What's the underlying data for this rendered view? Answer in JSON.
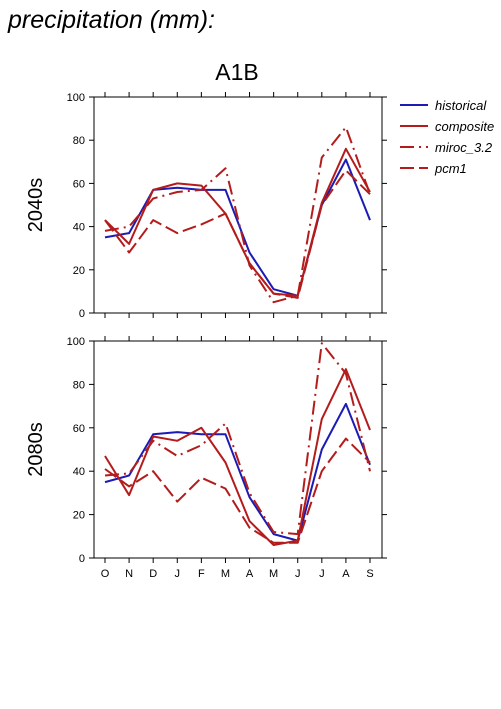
{
  "page": {
    "title": "precipitation (mm):"
  },
  "chart_data": {
    "type": "line",
    "title": "A1B",
    "categories": [
      "O",
      "N",
      "D",
      "J",
      "F",
      "M",
      "A",
      "M",
      "J",
      "J",
      "A",
      "S"
    ],
    "ylim": [
      0,
      100
    ],
    "yticks": [
      0,
      20,
      40,
      60,
      80,
      100
    ],
    "grid": false,
    "legend_position": "top-right",
    "legend": [
      {
        "name": "historical",
        "color": "#1c1cb4",
        "dash": "solid"
      },
      {
        "name": "composite",
        "color": "#b41c1c",
        "dash": "solid"
      },
      {
        "name": "miroc_3.2",
        "color": "#b41c1c",
        "dash": "dashdot"
      },
      {
        "name": "pcm1",
        "color": "#b41c1c",
        "dash": "dash"
      }
    ],
    "panels": [
      {
        "label": "2040s",
        "series": [
          {
            "name": "historical",
            "values": [
              35,
              37,
              57,
              58,
              57,
              57,
              28,
              11,
              8,
              50,
              71,
              43
            ]
          },
          {
            "name": "composite",
            "values": [
              43,
              32,
              57,
              60,
              59,
              46,
              23,
              9,
              8,
              51,
              76,
              56
            ]
          },
          {
            "name": "miroc_3.2",
            "values": [
              38,
              40,
              53,
              56,
              57,
              67,
              22,
              5,
              8,
              72,
              86,
              55
            ]
          },
          {
            "name": "pcm1",
            "values": [
              43,
              28,
              43,
              37,
              41,
              46,
              23,
              9,
              7,
              50,
              66,
              55
            ]
          }
        ]
      },
      {
        "label": "2080s",
        "series": [
          {
            "name": "historical",
            "values": [
              35,
              38,
              57,
              58,
              57,
              57,
              28,
              11,
              8,
              50,
              71,
              43
            ]
          },
          {
            "name": "composite",
            "values": [
              47,
              29,
              56,
              54,
              60,
              44,
              17,
              6,
              8,
              64,
              87,
              59
            ]
          },
          {
            "name": "miroc_3.2",
            "values": [
              38,
              39,
              54,
              47,
              52,
              62,
              30,
              12,
              11,
              99,
              85,
              40
            ]
          },
          {
            "name": "pcm1",
            "values": [
              41,
              33,
              40,
              26,
              37,
              32,
              14,
              7,
              7,
              40,
              55,
              44
            ]
          }
        ]
      }
    ]
  }
}
